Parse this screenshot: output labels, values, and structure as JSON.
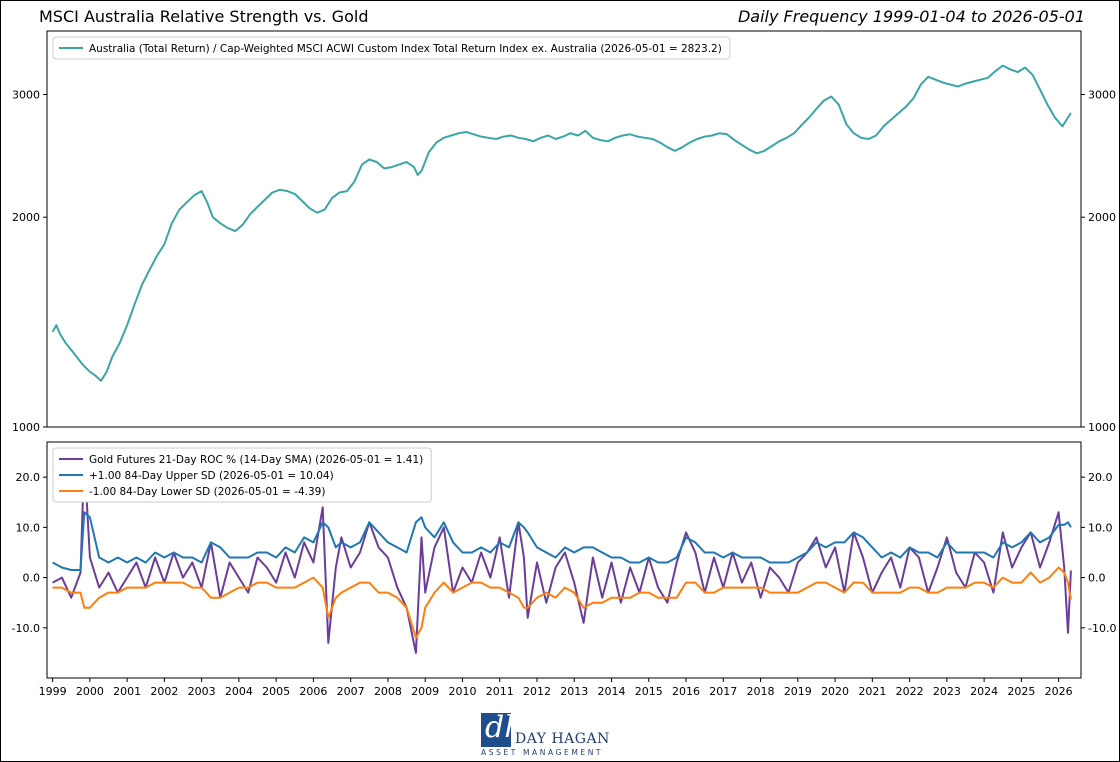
{
  "header": {
    "title": "MSCI Australia Relative Strength vs. Gold",
    "subtitle": "Daily Frequency 1999-01-04 to 2026-05-01"
  },
  "logo": {
    "name": "DAY HAGAN",
    "sub": "ASSET MANAGEMENT",
    "mark": "dh"
  },
  "colors": {
    "teal": "#3aa6a6",
    "purple": "#6a3d9a",
    "blue": "#1f77b4",
    "orange": "#ff7f0e"
  },
  "chart_data": [
    {
      "type": "line",
      "title": "",
      "legend_position": "top-left",
      "y_scale": "log",
      "ylim": [
        1000,
        3700
      ],
      "xlim": [
        1998.85,
        2026.6
      ],
      "yticks": [
        1000,
        2000,
        3000
      ],
      "ytick_labels": [
        "1000",
        "2000",
        "3000"
      ],
      "grid": false,
      "series": [
        {
          "name": "Australia (Total Return) / Cap-Weighted MSCI ACWI Custom Index Total Return Index ex. Australia (2026-05-01 = 2823.2)",
          "color": "#3aa6a6",
          "x": [
            1999.0,
            1999.1,
            1999.2,
            1999.35,
            1999.5,
            1999.65,
            1999.8,
            2000.0,
            2000.15,
            2000.3,
            2000.45,
            2000.6,
            2000.8,
            2001.0,
            2001.2,
            2001.4,
            2001.6,
            2001.8,
            2002.0,
            2002.2,
            2002.4,
            2002.6,
            2002.8,
            2003.0,
            2003.15,
            2003.3,
            2003.5,
            2003.7,
            2003.9,
            2004.1,
            2004.3,
            2004.5,
            2004.7,
            2004.9,
            2005.1,
            2005.3,
            2005.5,
            2005.7,
            2005.9,
            2006.1,
            2006.3,
            2006.5,
            2006.7,
            2006.9,
            2007.1,
            2007.3,
            2007.5,
            2007.7,
            2007.9,
            2008.1,
            2008.3,
            2008.5,
            2008.7,
            2008.8,
            2008.9,
            2009.1,
            2009.3,
            2009.5,
            2009.7,
            2009.9,
            2010.1,
            2010.3,
            2010.5,
            2010.7,
            2010.9,
            2011.1,
            2011.3,
            2011.5,
            2011.7,
            2011.9,
            2012.1,
            2012.3,
            2012.5,
            2012.7,
            2012.9,
            2013.1,
            2013.3,
            2013.5,
            2013.7,
            2013.9,
            2014.1,
            2014.3,
            2014.5,
            2014.7,
            2014.9,
            2015.1,
            2015.3,
            2015.5,
            2015.7,
            2015.9,
            2016.1,
            2016.3,
            2016.5,
            2016.7,
            2016.9,
            2017.1,
            2017.3,
            2017.5,
            2017.7,
            2017.9,
            2018.1,
            2018.3,
            2018.5,
            2018.7,
            2018.9,
            2019.1,
            2019.3,
            2019.5,
            2019.7,
            2019.9,
            2020.1,
            2020.3,
            2020.5,
            2020.7,
            2020.9,
            2021.1,
            2021.3,
            2021.5,
            2021.7,
            2021.9,
            2022.1,
            2022.3,
            2022.5,
            2022.7,
            2022.9,
            2023.1,
            2023.3,
            2023.5,
            2023.7,
            2023.9,
            2024.1,
            2024.3,
            2024.5,
            2024.7,
            2024.9,
            2025.1,
            2025.3,
            2025.5,
            2025.7,
            2025.9,
            2026.1,
            2026.33
          ],
          "values": [
            1370,
            1400,
            1360,
            1320,
            1290,
            1260,
            1230,
            1200,
            1185,
            1165,
            1200,
            1260,
            1320,
            1400,
            1500,
            1600,
            1680,
            1760,
            1830,
            1960,
            2050,
            2100,
            2150,
            2180,
            2100,
            2000,
            1960,
            1930,
            1910,
            1950,
            2020,
            2070,
            2120,
            2170,
            2190,
            2180,
            2160,
            2110,
            2060,
            2030,
            2050,
            2130,
            2170,
            2180,
            2250,
            2380,
            2420,
            2400,
            2350,
            2360,
            2380,
            2400,
            2360,
            2300,
            2330,
            2480,
            2560,
            2600,
            2620,
            2640,
            2650,
            2630,
            2610,
            2600,
            2590,
            2610,
            2620,
            2600,
            2590,
            2570,
            2600,
            2620,
            2590,
            2610,
            2640,
            2620,
            2660,
            2600,
            2580,
            2570,
            2600,
            2620,
            2630,
            2610,
            2600,
            2590,
            2560,
            2520,
            2490,
            2520,
            2560,
            2590,
            2610,
            2620,
            2640,
            2630,
            2580,
            2540,
            2500,
            2470,
            2490,
            2530,
            2570,
            2600,
            2640,
            2710,
            2780,
            2860,
            2940,
            2980,
            2900,
            2720,
            2640,
            2600,
            2590,
            2620,
            2700,
            2760,
            2820,
            2880,
            2960,
            3100,
            3180,
            3150,
            3120,
            3100,
            3080,
            3110,
            3130,
            3150,
            3170,
            3240,
            3300,
            3260,
            3230,
            3280,
            3200,
            3050,
            2900,
            2780,
            2700,
            2823.2
          ]
        }
      ]
    },
    {
      "type": "line",
      "title": "",
      "legend_position": "top-left",
      "ylim": [
        -20,
        27
      ],
      "xlim": [
        1998.85,
        2026.6
      ],
      "yticks": [
        -10,
        0,
        10,
        20
      ],
      "ytick_labels": [
        "-10.0",
        "0.0",
        "10.0",
        "20.0"
      ],
      "xticks": [
        1999,
        2000,
        2001,
        2002,
        2003,
        2004,
        2005,
        2006,
        2007,
        2008,
        2009,
        2010,
        2011,
        2012,
        2013,
        2014,
        2015,
        2016,
        2017,
        2018,
        2019,
        2020,
        2021,
        2022,
        2023,
        2024,
        2025,
        2026
      ],
      "xtick_labels": [
        "1999",
        "2000",
        "2001",
        "2002",
        "2003",
        "2004",
        "2005",
        "2006",
        "2007",
        "2008",
        "2009",
        "2010",
        "2011",
        "2012",
        "2013",
        "2014",
        "2015",
        "2016",
        "2017",
        "2018",
        "2019",
        "2020",
        "2021",
        "2022",
        "2023",
        "2024",
        "2025",
        "2026"
      ],
      "grid": false,
      "x": [
        1999.0,
        1999.25,
        1999.5,
        1999.75,
        1999.85,
        2000.0,
        2000.25,
        2000.5,
        2000.75,
        2001.0,
        2001.25,
        2001.5,
        2001.75,
        2002.0,
        2002.25,
        2002.5,
        2002.75,
        2003.0,
        2003.25,
        2003.5,
        2003.75,
        2004.0,
        2004.25,
        2004.5,
        2004.75,
        2005.0,
        2005.25,
        2005.5,
        2005.75,
        2006.0,
        2006.25,
        2006.4,
        2006.6,
        2006.75,
        2007.0,
        2007.25,
        2007.5,
        2007.75,
        2008.0,
        2008.25,
        2008.5,
        2008.75,
        2008.9,
        2009.0,
        2009.25,
        2009.5,
        2009.75,
        2010.0,
        2010.25,
        2010.5,
        2010.75,
        2011.0,
        2011.25,
        2011.5,
        2011.65,
        2011.75,
        2012.0,
        2012.25,
        2012.5,
        2012.75,
        2013.0,
        2013.25,
        2013.5,
        2013.75,
        2014.0,
        2014.25,
        2014.5,
        2014.75,
        2015.0,
        2015.25,
        2015.5,
        2015.75,
        2016.0,
        2016.25,
        2016.5,
        2016.75,
        2017.0,
        2017.25,
        2017.5,
        2017.75,
        2018.0,
        2018.25,
        2018.5,
        2018.75,
        2019.0,
        2019.25,
        2019.5,
        2019.75,
        2020.0,
        2020.25,
        2020.5,
        2020.75,
        2021.0,
        2021.25,
        2021.5,
        2021.75,
        2022.0,
        2022.25,
        2022.5,
        2022.75,
        2023.0,
        2023.25,
        2023.5,
        2023.75,
        2024.0,
        2024.25,
        2024.5,
        2024.75,
        2025.0,
        2025.25,
        2025.5,
        2025.75,
        2026.0,
        2026.15,
        2026.25,
        2026.33
      ],
      "series": [
        {
          "name": "Gold Futures 21-Day ROC % (14-Day SMA) (2026-05-01 = 1.41)",
          "color": "#6a3d9a",
          "values": [
            -1,
            0,
            -4,
            1,
            24,
            4,
            -2,
            1,
            -3,
            0,
            3,
            -2,
            4,
            -1,
            5,
            0,
            3,
            -2,
            7,
            -4,
            3,
            0,
            -3,
            4,
            2,
            -1,
            5,
            0,
            7,
            3,
            14,
            -13,
            2,
            8,
            2,
            5,
            11,
            6,
            4,
            -2,
            -6,
            -15,
            8,
            -3,
            6,
            10,
            -3,
            2,
            -1,
            5,
            0,
            8,
            -4,
            11,
            4,
            -8,
            3,
            -5,
            2,
            5,
            -1,
            -9,
            4,
            -4,
            3,
            -5,
            2,
            -3,
            4,
            -2,
            -5,
            3,
            9,
            5,
            -3,
            4,
            -2,
            5,
            -1,
            3,
            -4,
            2,
            0,
            -3,
            3,
            5,
            8,
            2,
            6,
            -3,
            9,
            4,
            -3,
            1,
            4,
            -2,
            6,
            4,
            -3,
            2,
            8,
            1,
            -2,
            5,
            3,
            -3,
            9,
            2,
            6,
            9,
            2,
            7,
            13,
            2,
            -11,
            1.41
          ]
        },
        {
          "name": "+1.00 84-Day Upper SD (2026-05-01 = 10.04)",
          "color": "#1f77b4",
          "values": [
            3,
            2,
            1.5,
            1.5,
            13,
            12,
            4,
            3,
            4,
            3,
            4,
            3,
            5,
            4,
            5,
            4,
            4,
            3,
            7,
            6,
            4,
            4,
            4,
            5,
            5,
            4,
            6,
            5,
            8,
            7,
            11,
            10,
            6,
            7,
            6,
            7,
            11,
            9,
            7,
            6,
            5,
            11,
            12,
            10,
            8,
            11,
            7,
            5,
            5,
            6,
            5,
            7,
            6,
            11,
            10,
            9,
            6,
            5,
            4,
            6,
            5,
            6,
            6,
            5,
            4,
            4,
            3,
            3,
            4,
            3,
            3,
            4,
            8,
            7,
            5,
            5,
            4,
            5,
            4,
            4,
            4,
            3,
            3,
            3,
            4,
            5,
            7,
            6,
            7,
            7,
            9,
            8,
            6,
            4,
            5,
            4,
            6,
            5,
            5,
            4,
            7,
            5,
            5,
            5,
            5,
            4,
            7,
            6,
            7,
            9,
            7,
            8,
            10.5,
            10.5,
            11,
            10.04
          ]
        },
        {
          "name": "-1.00 84-Day Lower SD (2026-05-01 = -4.39)",
          "color": "#ff7f0e",
          "values": [
            -2,
            -2,
            -3,
            -3,
            -6,
            -6,
            -4,
            -3,
            -3,
            -2,
            -2,
            -2,
            -1,
            -1,
            -1,
            -1,
            -2,
            -2,
            -4,
            -4,
            -3,
            -2,
            -2,
            -1,
            -1,
            -2,
            -2,
            -2,
            -1,
            0,
            -2,
            -8,
            -4,
            -3,
            -2,
            -1,
            -1,
            -3,
            -3,
            -4,
            -6,
            -12,
            -10,
            -6,
            -3,
            -1,
            -3,
            -2,
            -1,
            -1,
            -2,
            -2,
            -3,
            -4,
            -6,
            -6,
            -4,
            -3,
            -4,
            -2,
            -3,
            -6,
            -5,
            -5,
            -4,
            -4,
            -4,
            -3,
            -3,
            -4,
            -4,
            -4,
            -1,
            -1,
            -3,
            -3,
            -2,
            -2,
            -2,
            -2,
            -2,
            -3,
            -3,
            -3,
            -3,
            -2,
            -1,
            -1,
            -2,
            -3,
            -1,
            -1,
            -3,
            -3,
            -3,
            -3,
            -2,
            -2,
            -3,
            -3,
            -2,
            -2,
            -2,
            -1,
            -1,
            -2,
            0,
            -1,
            -1,
            1,
            -1,
            0,
            2,
            1,
            -1,
            -4.39
          ]
        }
      ]
    }
  ]
}
